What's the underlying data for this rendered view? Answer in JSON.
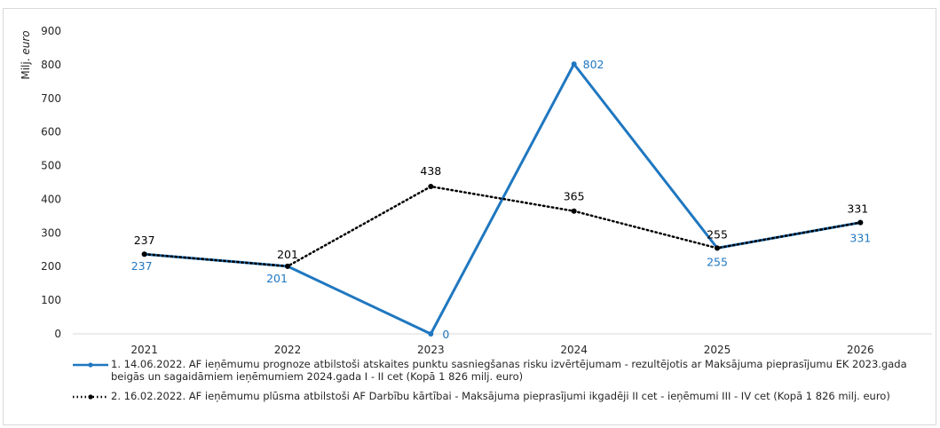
{
  "chart_data": {
    "type": "line",
    "title": "",
    "ylabel": "Milj. euro",
    "ylabel_prefix": "Milj. ",
    "ylabel_unit": "euro",
    "xlabel": "",
    "ylim": [
      0,
      900
    ],
    "yticks": [
      "0",
      "100",
      "200",
      "300",
      "400",
      "500",
      "600",
      "700",
      "800",
      "900"
    ],
    "yticks_values": [
      0,
      100,
      200,
      300,
      400,
      500,
      600,
      700,
      800,
      900
    ],
    "categories": [
      "2021",
      "2022",
      "2023",
      "2024",
      "2025",
      "2026"
    ],
    "grid": false,
    "legend_position": "bottom",
    "series": [
      {
        "name": "1. 14.06.2022. AF ieņēmumu prognoze atbilstoši atskaites punktu sasniegšanas risku izvērtējumam - rezultējotis ar Maksājuma pieprasījumu EK 2023.gada beigās un sagaidāmiem ieņēmumiem 2024.gada I - II cet (Kopā 1 826 milj. euro)",
        "values": [
          237,
          201,
          0,
          802,
          255,
          331
        ],
        "labels": [
          "237",
          "201",
          "0",
          "802",
          "255",
          "331"
        ],
        "color": "#1f77c0",
        "style": "solid"
      },
      {
        "name": "2. 16.02.2022. AF ieņēmumu plūsma atbilstoši AF Darbību kārtībai - Maksājuma pieprasījumi ikgadēji II cet - ieņēmumi III - IV cet (Kopā 1 826 milj. euro)",
        "values": [
          237,
          201,
          438,
          365,
          255,
          331
        ],
        "labels": [
          "237",
          "201",
          "438",
          "365",
          "255",
          "331"
        ],
        "color": "#000000",
        "style": "dotted"
      }
    ]
  }
}
